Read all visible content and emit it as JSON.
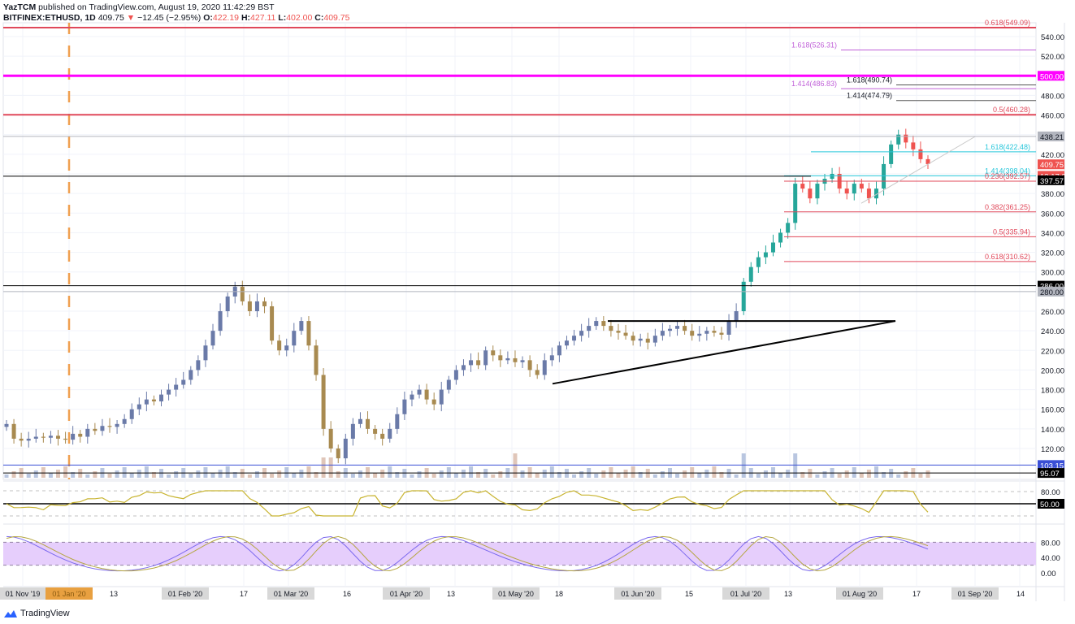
{
  "header": {
    "publisher_line": "YazTCM published on TradingView.com, August 19, 2020 11:42:29 BST",
    "publisher": "YazTCM",
    "publish_rest": " published on TradingView.com, August 19, 2020 11:42:29 BST",
    "symbol": "BITFINEX:ETHUSD, 1D",
    "last": "409.75",
    "change": "−12.45 (−2.95%)",
    "change_arrow": "▼",
    "o_label": "O:",
    "o": "422.19",
    "h_label": "H:",
    "h": "427.11",
    "l_label": "L:",
    "l": "402.00",
    "c_label": "C:",
    "c": "409.75"
  },
  "footer": {
    "brand": "TradingView"
  },
  "colors": {
    "up": "#26a69a",
    "down": "#ef5350",
    "fib_red": "#e0485a",
    "fib_cyan": "#26c6da",
    "magenta": "#ff00ff",
    "purple_fib": "#b040d0",
    "blue_line": "#3a4fd6",
    "rsi": "#c8b430",
    "stoch_k": "#7b68ee",
    "stoch_d": "#b5a642",
    "stoch_band": "#e6cefc"
  },
  "chart_data": {
    "type": "candlestick",
    "title": "BITFINEX:ETHUSD, 1D",
    "y_axis": {
      "ticks": [
        120,
        140,
        160,
        180,
        200,
        220,
        240,
        260,
        280,
        300,
        320,
        340,
        360,
        380,
        400,
        420,
        440,
        460,
        480,
        500,
        520,
        540
      ],
      "range": [
        95,
        560
      ]
    },
    "x_axis": {
      "labels": [
        "01 Nov '19",
        "01 Jan '20",
        "13",
        "01 Feb '20",
        "17",
        "01 Mar '20",
        "16",
        "01 Apr '20",
        "13",
        "01 May '20",
        "18",
        "01 Jun '20",
        "15",
        "01 Jul '20",
        "13",
        "01 Aug '20",
        "17",
        "01 Sep '20",
        "14"
      ]
    },
    "price_labels": [
      {
        "value": "500.00",
        "bg": "#ff00ff",
        "fg": "#ffffff"
      },
      {
        "value": "438.21",
        "bg": "#b2b5be",
        "fg": "#131722"
      },
      {
        "value": "409.75",
        "bg": "#ef5350",
        "fg": "#ffffff"
      },
      {
        "value": "13:17:32",
        "bg": "#ef5350",
        "fg": "#ffffff"
      },
      {
        "value": "397.57",
        "bg": "#000000",
        "fg": "#ffffff"
      },
      {
        "value": "286.00",
        "bg": "#000000",
        "fg": "#ffffff"
      },
      {
        "value": "280.00",
        "bg": "#b2b5be",
        "fg": "#131722"
      },
      {
        "value": "103.15",
        "bg": "#3a4fd6",
        "fg": "#ffffff"
      },
      {
        "value": "95.07",
        "bg": "#000000",
        "fg": "#ffffff"
      }
    ],
    "horizontal_lines": [
      {
        "price": 549.09,
        "label": "0.618(549.09)",
        "color": "#e0485a"
      },
      {
        "price": 526.31,
        "label": "1.618(526.31)",
        "color": "#c060d8"
      },
      {
        "price": 500.0,
        "label": "",
        "color": "#ff00ff"
      },
      {
        "price": 490.74,
        "label": "1.618(490.74)",
        "color": "#555555"
      },
      {
        "price": 486.83,
        "label": "1.414(486.83)",
        "color": "#c060d8"
      },
      {
        "price": 474.79,
        "label": "1.414(474.79)",
        "color": "#555555"
      },
      {
        "price": 460.28,
        "label": "0.5(460.28)",
        "color": "#e0485a"
      },
      {
        "price": 438.21,
        "label": "",
        "color": "#b2b5be"
      },
      {
        "price": 422.48,
        "label": "1.618(422.48)",
        "color": "#26c6da"
      },
      {
        "price": 398.04,
        "label": "1.414(398.04)",
        "color": "#26c6da"
      },
      {
        "price": 397.57,
        "label": "",
        "color": "#000000"
      },
      {
        "price": 392.57,
        "label": "0.236(392.57)",
        "color": "#e0485a"
      },
      {
        "price": 361.25,
        "label": "0.382(361.25)",
        "color": "#e0485a"
      },
      {
        "price": 335.94,
        "label": "0.5(335.94)",
        "color": "#e0485a"
      },
      {
        "price": 310.62,
        "label": "0.618(310.62)",
        "color": "#e0485a"
      },
      {
        "price": 286.0,
        "label": "",
        "color": "#000000"
      },
      {
        "price": 280.0,
        "label": "",
        "color": "#b2b5be"
      },
      {
        "price": 103.15,
        "label": "",
        "color": "#3a4fd6"
      },
      {
        "price": 95.07,
        "label": "",
        "color": "#000000"
      }
    ],
    "trendlines": [
      {
        "name": "triangle-top",
        "from": [
          "01 Jun '20",
          250
        ],
        "to": [
          "Aug 12",
          250
        ]
      },
      {
        "name": "triangle-base",
        "from": [
          "May 11",
          186
        ],
        "to": [
          "Aug 12",
          250
        ]
      }
    ],
    "closes_approx": [
      145,
      130,
      128,
      130,
      132,
      131,
      133,
      130,
      129,
      135,
      132,
      140,
      138,
      143,
      142,
      145,
      150,
      160,
      165,
      170,
      168,
      175,
      180,
      185,
      190,
      200,
      210,
      225,
      240,
      260,
      275,
      285,
      270,
      260,
      270,
      265,
      230,
      220,
      225,
      240,
      250,
      225,
      195,
      140,
      120,
      110,
      130,
      145,
      150,
      140,
      135,
      130,
      140,
      155,
      170,
      175,
      180,
      170,
      165,
      180,
      190,
      200,
      205,
      210,
      205,
      220,
      215,
      210,
      212,
      208,
      210,
      200,
      195,
      210,
      215,
      225,
      230,
      235,
      240,
      245,
      250,
      245,
      240,
      238,
      235,
      230,
      232,
      228,
      235,
      240,
      242,
      245,
      240,
      235,
      237,
      240,
      238,
      236,
      250,
      260,
      290,
      305,
      315,
      320,
      330,
      340,
      350,
      390,
      385,
      375,
      390,
      395,
      400,
      385,
      380,
      390,
      385,
      375,
      385,
      410,
      430,
      440,
      432,
      425,
      415,
      410
    ],
    "rsi": {
      "levels": [
        80,
        50,
        20
      ],
      "labels": [
        "80.00",
        "50.00"
      ]
    },
    "stoch_rsi": {
      "levels": [
        80,
        20
      ],
      "labels": [
        "80.00",
        "40.00",
        "0.00"
      ]
    }
  }
}
